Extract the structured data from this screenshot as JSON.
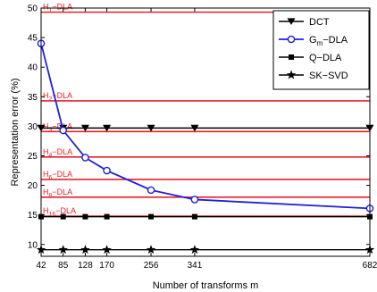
{
  "chart_data": {
    "type": "line",
    "xlabel": "Number of transforms m",
    "ylabel": "Representation error (%)",
    "x_ticks": [
      42,
      85,
      128,
      170,
      256,
      341,
      682
    ],
    "y_ticks": [
      10,
      15,
      20,
      25,
      30,
      35,
      40,
      45,
      50
    ],
    "xlim": [
      42,
      682
    ],
    "ylim": [
      8,
      50
    ],
    "grid": false,
    "legend_position": "top-right",
    "series": [
      {
        "name": "DCT",
        "color": "#000000",
        "marker": "triangle-down",
        "x": [
          42,
          85,
          128,
          170,
          256,
          341,
          682
        ],
        "values": [
          29.7,
          29.7,
          29.7,
          29.7,
          29.7,
          29.7,
          29.7
        ]
      },
      {
        "name": "G_m−DLA",
        "color": "#1f1fdc",
        "marker": "circle",
        "x": [
          42,
          85,
          128,
          170,
          256,
          341,
          682
        ],
        "values": [
          44.0,
          29.3,
          24.7,
          22.5,
          19.2,
          17.6,
          16.1
        ]
      },
      {
        "name": "Q−DLA",
        "color": "#000000",
        "marker": "square",
        "x": [
          42,
          85,
          128,
          170,
          256,
          341,
          682
        ],
        "values": [
          14.7,
          14.7,
          14.7,
          14.7,
          14.7,
          14.7,
          14.7
        ]
      },
      {
        "name": "SK−SVD",
        "color": "#000000",
        "marker": "star",
        "x": [
          42,
          85,
          128,
          170,
          256,
          341,
          682
        ],
        "values": [
          9.1,
          9.1,
          9.1,
          9.1,
          9.1,
          9.1,
          9.1
        ]
      }
    ],
    "reference_lines": [
      {
        "label_main": "H",
        "label_sub": "1",
        "label_rest": "−DLA",
        "value": 49.3,
        "color": "#e8202a"
      },
      {
        "label_main": "H",
        "label_sub": "2",
        "label_rest": "−DLA",
        "value": 34.3,
        "color": "#e8202a"
      },
      {
        "label_main": "H",
        "label_sub": "3",
        "label_rest": "−DLA",
        "value": 29.1,
        "color": "#e8202a"
      },
      {
        "label_main": "H",
        "label_sub": "4",
        "label_rest": "−DLA",
        "value": 24.8,
        "color": "#e8202a"
      },
      {
        "label_main": "H",
        "label_sub": "6",
        "label_rest": "−DLA",
        "value": 21.0,
        "color": "#e8202a"
      },
      {
        "label_main": "H",
        "label_sub": "8",
        "label_rest": "−DLA",
        "value": 18.0,
        "color": "#e8202a"
      },
      {
        "label_main": "H",
        "label_sub": "16",
        "label_rest": "−DLA",
        "value": 14.8,
        "color": "#e8202a"
      }
    ],
    "legend": [
      {
        "main": "DCT",
        "sub": "",
        "rest": ""
      },
      {
        "main": "G",
        "sub": "m",
        "rest": "−DLA"
      },
      {
        "main": "Q−DLA",
        "sub": "",
        "rest": ""
      },
      {
        "main": "SK−SVD",
        "sub": "",
        "rest": ""
      }
    ]
  }
}
